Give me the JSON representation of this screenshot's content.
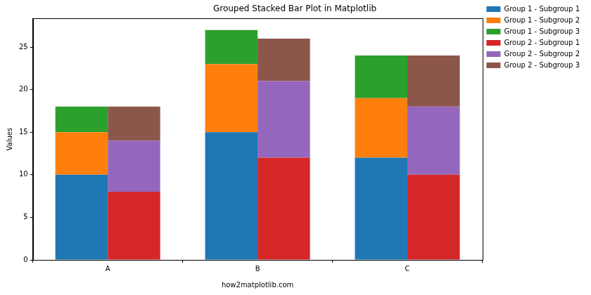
{
  "chart_data": {
    "type": "bar",
    "title": "Grouped Stacked Bar Plot in Matplotlib",
    "x_label": "how2matplotlib.com",
    "y_label": "Values",
    "categories": [
      "A",
      "B",
      "C"
    ],
    "stacked": true,
    "groups": [
      {
        "series": [
          {
            "name": "Group 1 - Subgroup 1",
            "color": "#1f77b4",
            "values": [
              10,
              15,
              12
            ]
          },
          {
            "name": "Group 1 - Subgroup 2",
            "color": "#ff7f0e",
            "values": [
              5,
              8,
              7
            ]
          },
          {
            "name": "Group 1 - Subgroup 3",
            "color": "#2ca02c",
            "values": [
              3,
              4,
              5
            ]
          }
        ]
      },
      {
        "series": [
          {
            "name": "Group 2 - Subgroup 1",
            "color": "#d62728",
            "values": [
              8,
              12,
              10
            ]
          },
          {
            "name": "Group 2 - Subgroup 2",
            "color": "#9467bd",
            "values": [
              6,
              9,
              8
            ]
          },
          {
            "name": "Group 2 - Subgroup 3",
            "color": "#8c564b",
            "values": [
              4,
              5,
              6
            ]
          }
        ]
      }
    ],
    "ylim": [
      0,
      28.35
    ],
    "yticks": [
      0,
      5,
      10,
      15,
      20,
      25
    ],
    "grid": false,
    "legend": "right"
  }
}
